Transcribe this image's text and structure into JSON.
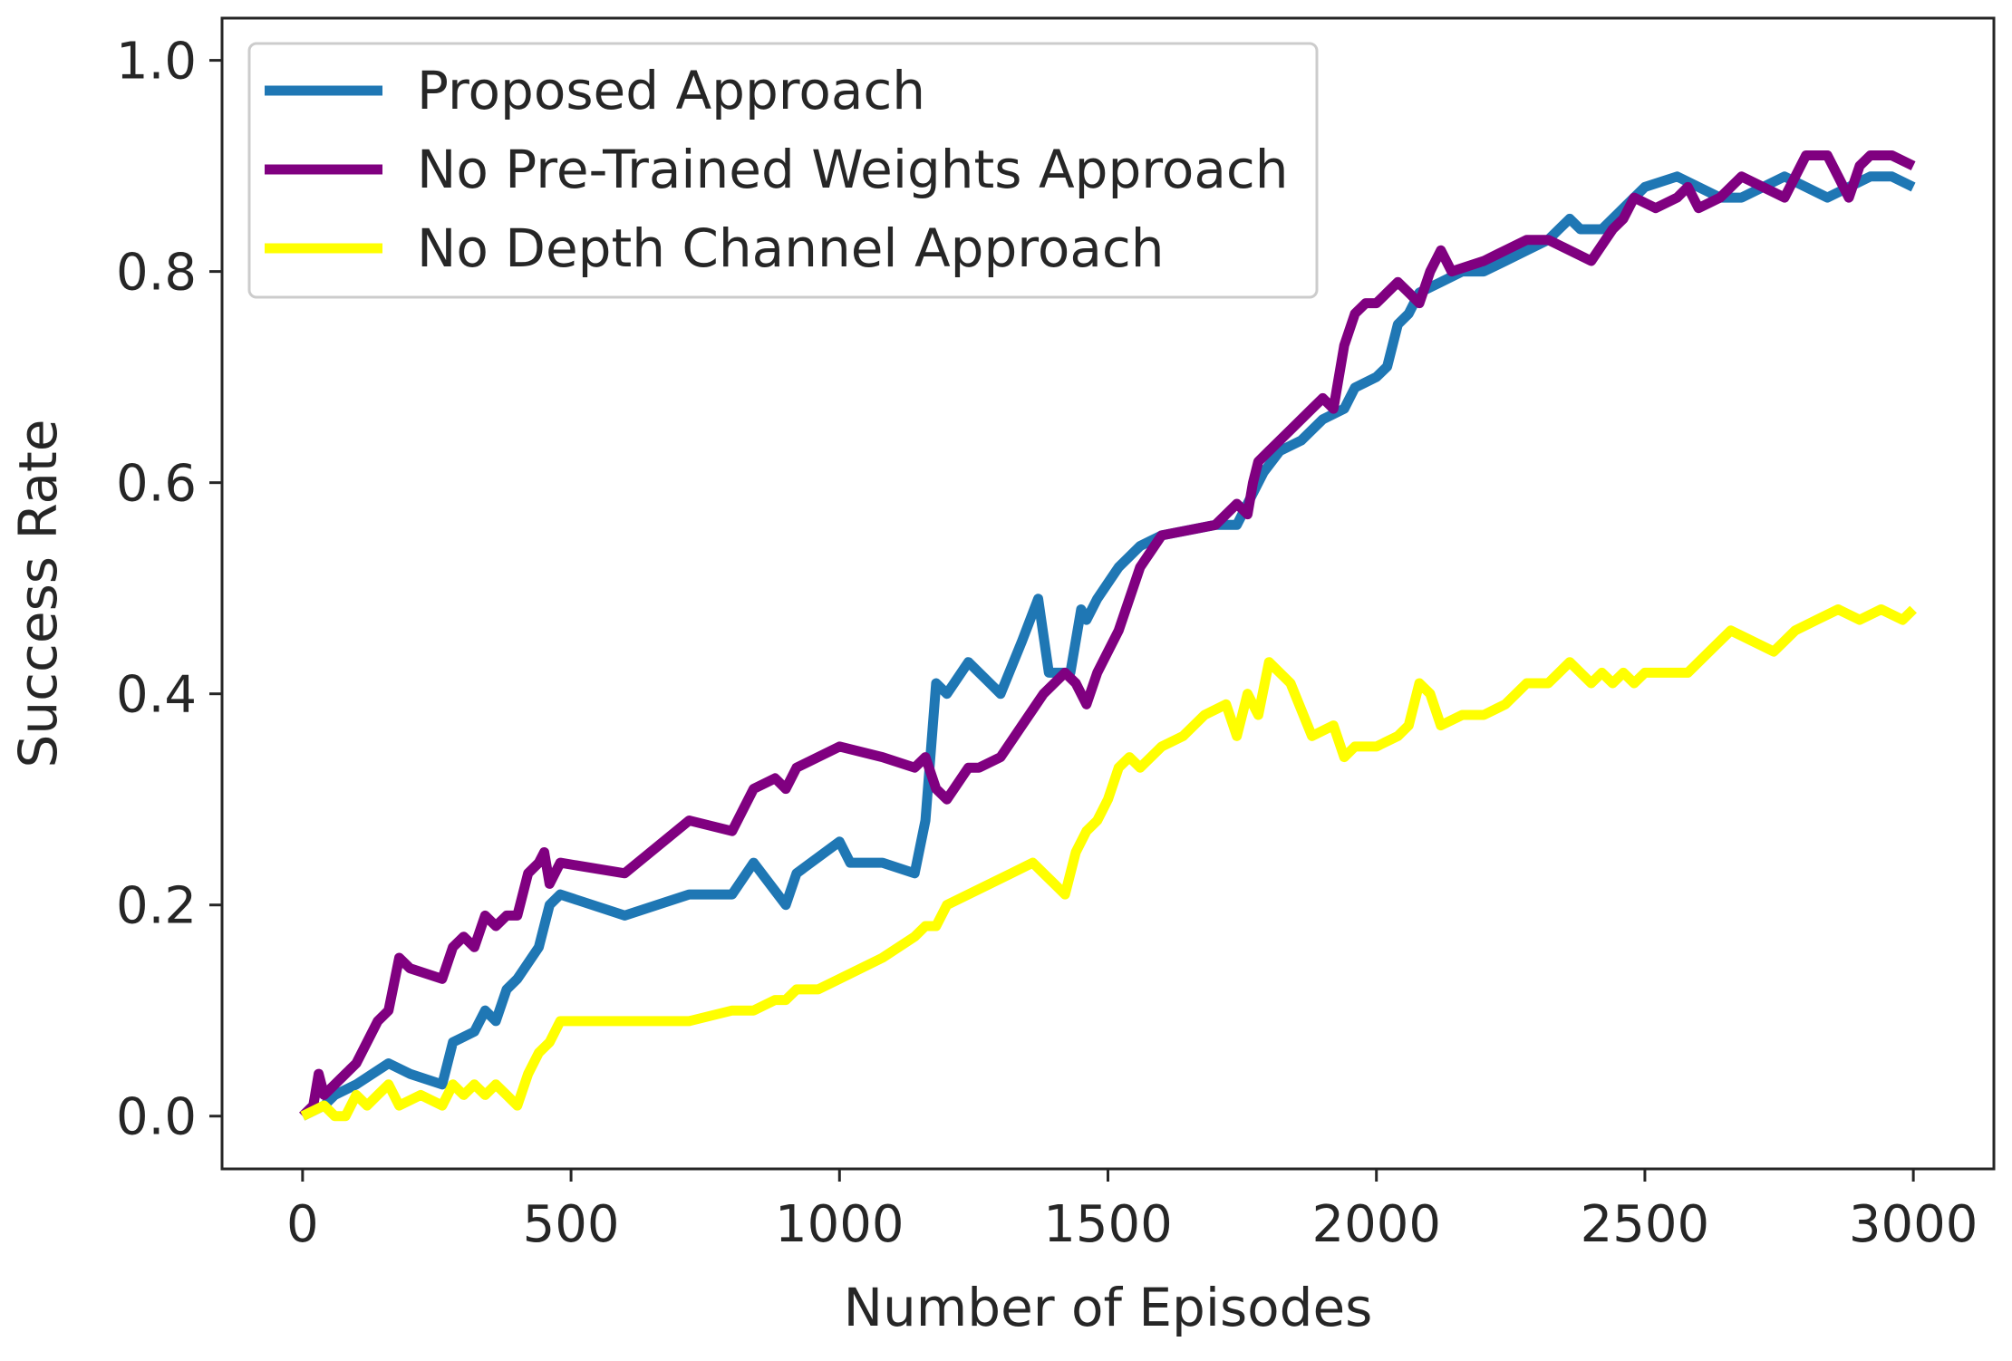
{
  "chart_data": {
    "type": "line",
    "title": "",
    "xlabel": "Number of Episodes",
    "ylabel": "Success Rate",
    "xlim": [
      -150,
      3150
    ],
    "ylim": [
      -0.05,
      1.04
    ],
    "xticks": [
      0,
      500,
      1000,
      1500,
      2000,
      2500,
      3000
    ],
    "xtick_labels": [
      "0",
      "500",
      "1000",
      "1500",
      "2000",
      "2500",
      "3000"
    ],
    "yticks": [
      0.0,
      0.2,
      0.4,
      0.6,
      0.8,
      1.0
    ],
    "ytick_labels": [
      "0.0",
      "0.2",
      "0.4",
      "0.6",
      "0.8",
      "1.0"
    ],
    "grid": false,
    "legend_position": "top-left",
    "series": [
      {
        "name": "Proposed Approach",
        "color": "#1f77b4",
        "x": [
          0,
          40,
          60,
          100,
          160,
          200,
          260,
          280,
          320,
          340,
          360,
          380,
          400,
          440,
          460,
          480,
          600,
          720,
          800,
          840,
          900,
          920,
          1000,
          1020,
          1080,
          1140,
          1160,
          1180,
          1200,
          1240,
          1280,
          1300,
          1340,
          1370,
          1390,
          1410,
          1430,
          1450,
          1460,
          1480,
          1520,
          1560,
          1600,
          1700,
          1740,
          1760,
          1790,
          1820,
          1860,
          1900,
          1940,
          1960,
          2000,
          2020,
          2040,
          2060,
          2080,
          2120,
          2160,
          2200,
          2240,
          2280,
          2320,
          2340,
          2360,
          2380,
          2420,
          2460,
          2500,
          2560,
          2600,
          2640,
          2680,
          2720,
          2760,
          2800,
          2840,
          2880,
          2920,
          2960,
          3000
        ],
        "y": [
          0.0,
          0.01,
          0.02,
          0.03,
          0.05,
          0.04,
          0.03,
          0.07,
          0.08,
          0.1,
          0.09,
          0.12,
          0.13,
          0.16,
          0.2,
          0.21,
          0.19,
          0.21,
          0.21,
          0.24,
          0.2,
          0.23,
          0.26,
          0.24,
          0.24,
          0.23,
          0.28,
          0.41,
          0.4,
          0.43,
          0.41,
          0.4,
          0.45,
          0.49,
          0.42,
          0.42,
          0.42,
          0.48,
          0.47,
          0.49,
          0.52,
          0.54,
          0.55,
          0.56,
          0.56,
          0.58,
          0.61,
          0.63,
          0.64,
          0.66,
          0.67,
          0.69,
          0.7,
          0.71,
          0.75,
          0.76,
          0.78,
          0.79,
          0.8,
          0.8,
          0.81,
          0.82,
          0.83,
          0.84,
          0.85,
          0.84,
          0.84,
          0.86,
          0.88,
          0.89,
          0.88,
          0.87,
          0.87,
          0.88,
          0.89,
          0.88,
          0.87,
          0.88,
          0.89,
          0.89,
          0.88
        ]
      },
      {
        "name": "No Pre-Trained Weights Approach",
        "color": "#800080",
        "x": [
          0,
          20,
          30,
          40,
          60,
          80,
          100,
          140,
          160,
          180,
          200,
          260,
          280,
          300,
          320,
          340,
          360,
          380,
          400,
          420,
          440,
          450,
          460,
          480,
          600,
          720,
          800,
          840,
          880,
          900,
          920,
          960,
          1000,
          1080,
          1140,
          1160,
          1180,
          1200,
          1240,
          1260,
          1300,
          1340,
          1380,
          1400,
          1420,
          1440,
          1460,
          1480,
          1520,
          1560,
          1600,
          1700,
          1740,
          1760,
          1770,
          1780,
          1800,
          1840,
          1880,
          1900,
          1920,
          1940,
          1960,
          1980,
          2000,
          2040,
          2060,
          2080,
          2100,
          2120,
          2140,
          2200,
          2240,
          2280,
          2300,
          2320,
          2360,
          2400,
          2440,
          2460,
          2480,
          2520,
          2560,
          2580,
          2600,
          2640,
          2680,
          2720,
          2760,
          2800,
          2840,
          2860,
          2880,
          2900,
          2920,
          2960,
          3000
        ],
        "y": [
          0.0,
          0.01,
          0.04,
          0.02,
          0.03,
          0.04,
          0.05,
          0.09,
          0.1,
          0.15,
          0.14,
          0.13,
          0.16,
          0.17,
          0.16,
          0.19,
          0.18,
          0.19,
          0.19,
          0.23,
          0.24,
          0.25,
          0.22,
          0.24,
          0.23,
          0.28,
          0.27,
          0.31,
          0.32,
          0.31,
          0.33,
          0.34,
          0.35,
          0.34,
          0.33,
          0.34,
          0.31,
          0.3,
          0.33,
          0.33,
          0.34,
          0.37,
          0.4,
          0.41,
          0.42,
          0.41,
          0.39,
          0.42,
          0.46,
          0.52,
          0.55,
          0.56,
          0.58,
          0.57,
          0.6,
          0.62,
          0.63,
          0.65,
          0.67,
          0.68,
          0.67,
          0.73,
          0.76,
          0.77,
          0.77,
          0.79,
          0.78,
          0.77,
          0.8,
          0.82,
          0.8,
          0.81,
          0.82,
          0.83,
          0.83,
          0.83,
          0.82,
          0.81,
          0.84,
          0.85,
          0.87,
          0.86,
          0.87,
          0.88,
          0.86,
          0.87,
          0.89,
          0.88,
          0.87,
          0.91,
          0.91,
          0.89,
          0.87,
          0.9,
          0.91,
          0.91,
          0.9
        ]
      },
      {
        "name": "No Depth Channel Approach",
        "color": "#ffff00",
        "x": [
          0,
          40,
          60,
          80,
          100,
          120,
          140,
          160,
          180,
          220,
          260,
          280,
          300,
          320,
          340,
          360,
          380,
          400,
          420,
          440,
          460,
          480,
          600,
          720,
          800,
          840,
          880,
          900,
          920,
          960,
          1000,
          1080,
          1140,
          1160,
          1180,
          1200,
          1240,
          1280,
          1320,
          1360,
          1380,
          1400,
          1420,
          1440,
          1460,
          1480,
          1500,
          1520,
          1540,
          1560,
          1600,
          1640,
          1680,
          1720,
          1740,
          1760,
          1780,
          1800,
          1840,
          1880,
          1920,
          1940,
          1960,
          2000,
          2040,
          2060,
          2080,
          2100,
          2120,
          2160,
          2200,
          2240,
          2280,
          2320,
          2340,
          2360,
          2400,
          2420,
          2440,
          2460,
          2480,
          2500,
          2540,
          2580,
          2620,
          2660,
          2700,
          2740,
          2760,
          2780,
          2820,
          2860,
          2900,
          2940,
          2980,
          3000
        ],
        "y": [
          0.0,
          0.01,
          0.0,
          0.0,
          0.02,
          0.01,
          0.02,
          0.03,
          0.01,
          0.02,
          0.01,
          0.03,
          0.02,
          0.03,
          0.02,
          0.03,
          0.02,
          0.01,
          0.04,
          0.06,
          0.07,
          0.09,
          0.09,
          0.09,
          0.1,
          0.1,
          0.11,
          0.11,
          0.12,
          0.12,
          0.13,
          0.15,
          0.17,
          0.18,
          0.18,
          0.2,
          0.21,
          0.22,
          0.23,
          0.24,
          0.23,
          0.22,
          0.21,
          0.25,
          0.27,
          0.28,
          0.3,
          0.33,
          0.34,
          0.33,
          0.35,
          0.36,
          0.38,
          0.39,
          0.36,
          0.4,
          0.38,
          0.43,
          0.41,
          0.36,
          0.37,
          0.34,
          0.35,
          0.35,
          0.36,
          0.37,
          0.41,
          0.4,
          0.37,
          0.38,
          0.38,
          0.39,
          0.41,
          0.41,
          0.42,
          0.43,
          0.41,
          0.42,
          0.41,
          0.42,
          0.41,
          0.42,
          0.42,
          0.42,
          0.44,
          0.46,
          0.45,
          0.44,
          0.45,
          0.46,
          0.47,
          0.48,
          0.47,
          0.48,
          0.47,
          0.48
        ]
      }
    ]
  }
}
